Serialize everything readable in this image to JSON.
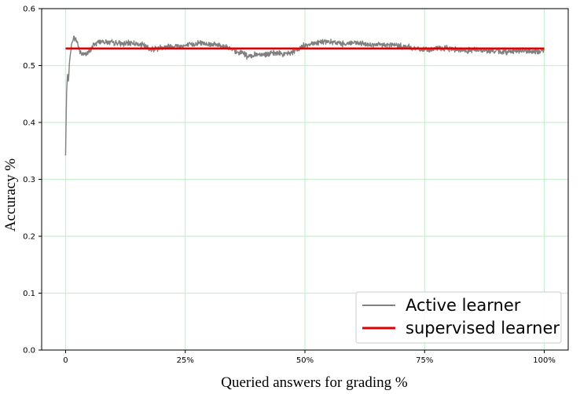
{
  "chart_data": {
    "type": "line",
    "xlabel": "Queried answers for grading %",
    "ylabel": "Accuracy %",
    "xlim": [
      -5,
      105
    ],
    "ylim": [
      0,
      0.6
    ],
    "x_ticks": [
      {
        "value": 0,
        "label": "0"
      },
      {
        "value": 25,
        "label": "25%"
      },
      {
        "value": 50,
        "label": "50%"
      },
      {
        "value": 75,
        "label": "75%"
      },
      {
        "value": 100,
        "label": "100%"
      }
    ],
    "y_ticks": [
      {
        "value": 0,
        "label": "0.0"
      },
      {
        "value": 0.1,
        "label": "0.1"
      },
      {
        "value": 0.2,
        "label": "0.2"
      },
      {
        "value": 0.3,
        "label": "0.3"
      },
      {
        "value": 0.4,
        "label": "0.4"
      },
      {
        "value": 0.5,
        "label": "0.5"
      },
      {
        "value": 0.6,
        "label": "0.6"
      }
    ],
    "grid": true,
    "grid_color": "#c8f0d0",
    "legend_position": "bottom-right",
    "series": [
      {
        "name": "Active learner",
        "color": "#808080",
        "x": [
          0,
          0.2,
          0.4,
          0.6,
          0.8,
          1,
          1.5,
          2,
          2.5,
          3,
          3.5,
          4,
          5,
          6,
          7,
          8,
          9,
          10,
          12,
          14,
          16,
          18,
          20,
          22,
          24,
          26,
          28,
          30,
          32,
          34,
          36,
          37,
          38,
          40,
          42,
          44,
          46,
          48,
          50,
          52,
          54,
          56,
          58,
          60,
          62,
          64,
          66,
          68,
          70,
          72,
          74,
          76,
          78,
          80,
          82,
          84,
          86,
          88,
          90,
          92,
          94,
          96,
          98,
          100
        ],
        "y": [
          0.342,
          0.45,
          0.487,
          0.47,
          0.505,
          0.52,
          0.548,
          0.548,
          0.54,
          0.523,
          0.52,
          0.52,
          0.524,
          0.538,
          0.542,
          0.542,
          0.54,
          0.54,
          0.538,
          0.54,
          0.536,
          0.528,
          0.532,
          0.534,
          0.534,
          0.536,
          0.54,
          0.538,
          0.536,
          0.532,
          0.522,
          0.524,
          0.515,
          0.52,
          0.52,
          0.522,
          0.52,
          0.525,
          0.536,
          0.54,
          0.542,
          0.54,
          0.538,
          0.54,
          0.538,
          0.536,
          0.536,
          0.536,
          0.534,
          0.532,
          0.528,
          0.528,
          0.53,
          0.53,
          0.528,
          0.526,
          0.528,
          0.526,
          0.525,
          0.524,
          0.526,
          0.526,
          0.524,
          0.527
        ],
        "noise": 0.006
      },
      {
        "name": "supervised learner",
        "color": "#e00000",
        "x": [
          0,
          100
        ],
        "y": [
          0.53,
          0.53
        ]
      }
    ]
  }
}
